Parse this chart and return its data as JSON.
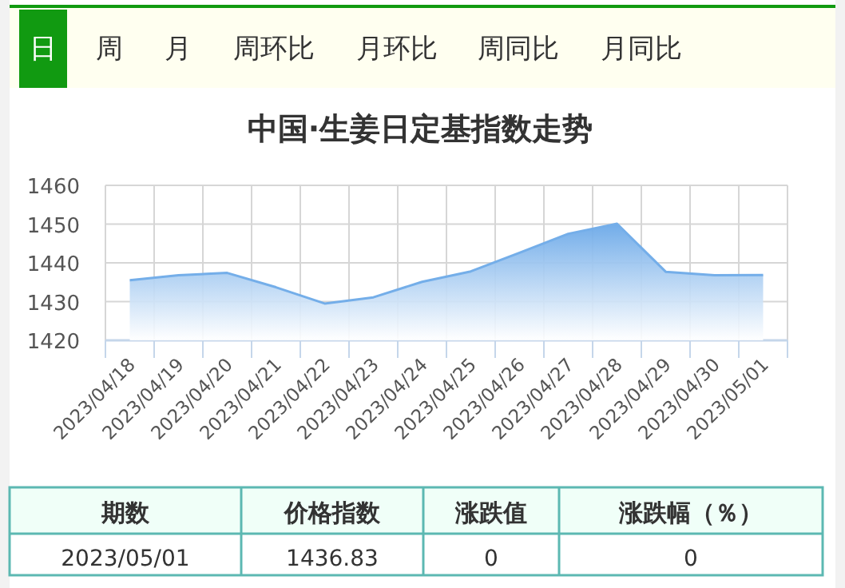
{
  "chart_data": [
    {
      "type": "other",
      "annotations": [
        "日",
        "周",
        "月",
        "周环比",
        "月环比",
        "周同比",
        "月同比"
      ]
    },
    {
      "type": "area",
      "title": "中国·生姜日定基指数走势",
      "categories": [
        "2023/04/18",
        "2023/04/19",
        "2023/04/20",
        "2023/04/21",
        "2023/04/22",
        "2023/04/23",
        "2023/04/24",
        "2023/04/25",
        "2023/04/26",
        "2023/04/27",
        "2023/04/28",
        "2023/04/29",
        "2023/04/30",
        "2023/05/01"
      ],
      "series": [
        {
          "color": "#74aee9",
          "values": [
            1435.5,
            1436.8,
            1437.4,
            1433.7,
            1429.5,
            1431.1,
            1435.1,
            1437.8,
            1442.6,
            1447.5,
            1450.1,
            1437.7,
            1436.8,
            1436.83
          ]
        }
      ],
      "ylim": [
        1420,
        1460
      ],
      "yticks": [
        1420,
        1430,
        1440,
        1450,
        1460
      ],
      "grid": true
    },
    {
      "type": "other",
      "annotations": [
        "期数",
        "价格指数",
        "涨跌值",
        "涨跌幅（％）",
        "2023/05/01",
        "1436.83",
        "0",
        "0"
      ]
    }
  ]
}
